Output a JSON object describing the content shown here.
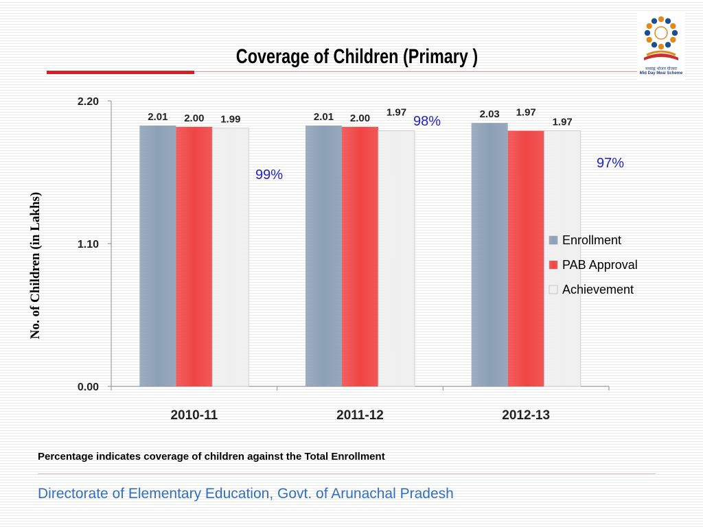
{
  "slide": {
    "title": "Coverage of Children   (Primary )",
    "logo": {
      "text_top": "मध्याह्न भोजन योजना",
      "text_bottom": "Mid Day Meal Scheme",
      "colors": {
        "blue": "#1f4e8c",
        "orange": "#e08a1e",
        "red": "#c9302c"
      }
    },
    "note": "Percentage indicates coverage of children against the Total Enrollment",
    "footer": "Directorate of Elementary Education, Govt. of Arunachal Pradesh"
  },
  "chart_data": {
    "type": "bar",
    "title": "",
    "ylabel": "No. of Children (in Lakhs)",
    "xlabel": "",
    "categories": [
      "2010-11",
      "2011-12",
      "2012-13"
    ],
    "series": [
      {
        "name": "Enrollment",
        "values": [
          2.01,
          2.01,
          2.03
        ],
        "labels": [
          "2.01",
          "2.01",
          "2.03"
        ],
        "color": "#8ca0b5"
      },
      {
        "name": "PAB Approval",
        "values": [
          2.0,
          2.0,
          1.97
        ],
        "labels": [
          "2.00",
          "2.00",
          "1.97"
        ],
        "color": "#f04545"
      },
      {
        "name": "Achievement",
        "values": [
          1.99,
          1.97,
          1.97
        ],
        "labels": [
          "1.99",
          "1.97",
          "1.97"
        ],
        "color": "#efefef"
      }
    ],
    "coverage_labels": [
      "99%",
      "98%",
      "97%"
    ],
    "coverage_color": "#1f1fbf",
    "yticks": [
      0.0,
      1.1,
      2.2
    ],
    "ytick_labels": [
      "0.00",
      "1.10",
      "2.20"
    ],
    "ylim": [
      0,
      2.2
    ],
    "grid": false,
    "legend": "right, inside plot"
  }
}
